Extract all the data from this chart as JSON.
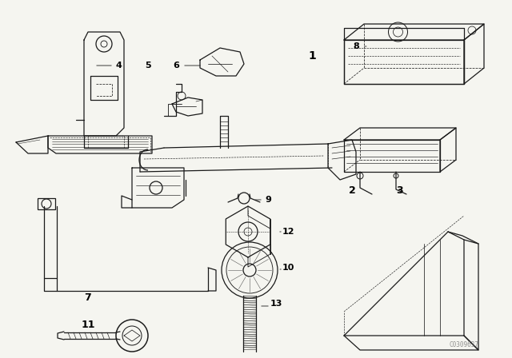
{
  "bg_color": "#f5f5f0",
  "line_color": "#1a1a1a",
  "label_color": "#000000",
  "watermark": "C0309637",
  "watermark_color": "#777777",
  "fig_width": 6.4,
  "fig_height": 4.48,
  "dpi": 100,
  "label_fs": 8,
  "lw": 0.9
}
